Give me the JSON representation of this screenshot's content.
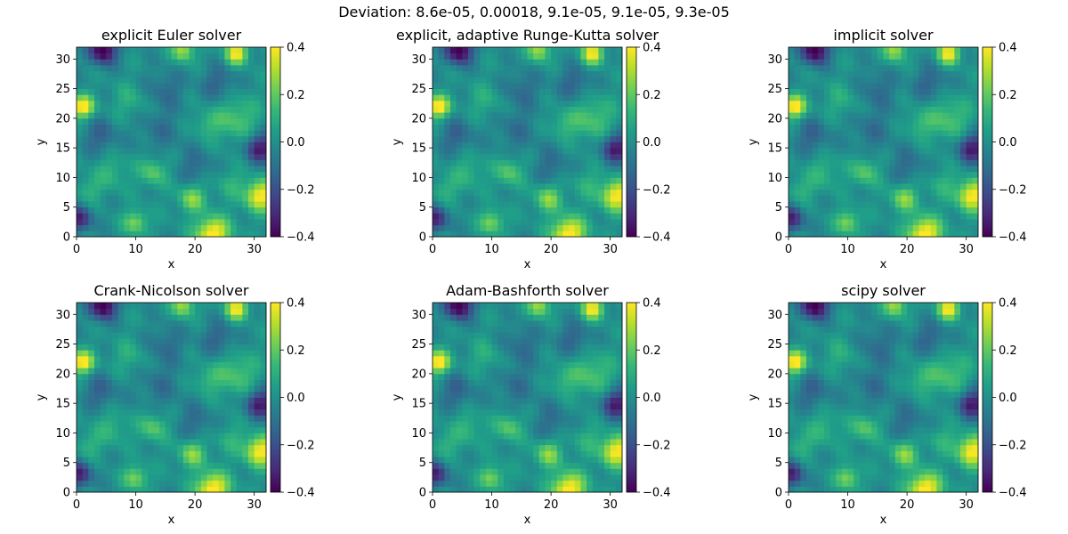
{
  "figure": {
    "suptitle": "Deviation: 8.6e-05, 0.00018, 9.1e-05, 9.1e-05, 9.3e-05"
  },
  "chart_data": [
    {
      "type": "heatmap",
      "title": "explicit Euler solver",
      "xlabel": "x",
      "ylabel": "y",
      "xlim": [
        0,
        32
      ],
      "ylim": [
        0,
        32
      ],
      "xticks": [
        0,
        10,
        20,
        30
      ],
      "yticks": [
        0,
        5,
        10,
        15,
        20,
        25,
        30
      ],
      "colormap": "viridis",
      "colorbar": {
        "range": [
          -0.4,
          0.4
        ],
        "ticks": [
          "0.4",
          "0.2",
          "0.0",
          "−0.2",
          "−0.4"
        ]
      }
    },
    {
      "type": "heatmap",
      "title": "explicit, adaptive Runge-Kutta solver",
      "xlabel": "x",
      "ylabel": "y",
      "xlim": [
        0,
        32
      ],
      "ylim": [
        0,
        32
      ],
      "xticks": [
        0,
        10,
        20,
        30
      ],
      "yticks": [
        0,
        5,
        10,
        15,
        20,
        25,
        30
      ],
      "colormap": "viridis",
      "colorbar": {
        "range": [
          -0.4,
          0.4
        ],
        "ticks": [
          "0.4",
          "0.2",
          "0.0",
          "−0.2",
          "−0.4"
        ]
      }
    },
    {
      "type": "heatmap",
      "title": "implicit solver",
      "xlabel": "x",
      "ylabel": "y",
      "xlim": [
        0,
        32
      ],
      "ylim": [
        0,
        32
      ],
      "xticks": [
        0,
        10,
        20,
        30
      ],
      "yticks": [
        0,
        5,
        10,
        15,
        20,
        25,
        30
      ],
      "colormap": "viridis",
      "colorbar": {
        "range": [
          -0.4,
          0.4
        ],
        "ticks": [
          "0.4",
          "0.2",
          "0.0",
          "−0.2",
          "−0.4"
        ]
      }
    },
    {
      "type": "heatmap",
      "title": "Crank-Nicolson solver",
      "xlabel": "x",
      "ylabel": "y",
      "xlim": [
        0,
        32
      ],
      "ylim": [
        0,
        32
      ],
      "xticks": [
        0,
        10,
        20,
        30
      ],
      "yticks": [
        0,
        5,
        10,
        15,
        20,
        25,
        30
      ],
      "colormap": "viridis",
      "colorbar": {
        "range": [
          -0.4,
          0.4
        ],
        "ticks": [
          "0.4",
          "0.2",
          "0.0",
          "−0.2",
          "−0.4"
        ]
      }
    },
    {
      "type": "heatmap",
      "title": "Adam-Bashforth solver",
      "xlabel": "x",
      "ylabel": "y",
      "xlim": [
        0,
        32
      ],
      "ylim": [
        0,
        32
      ],
      "xticks": [
        0,
        10,
        20,
        30
      ],
      "yticks": [
        0,
        5,
        10,
        15,
        20,
        25,
        30
      ],
      "colormap": "viridis",
      "colorbar": {
        "range": [
          -0.4,
          0.4
        ],
        "ticks": [
          "0.4",
          "0.2",
          "0.0",
          "−0.2",
          "−0.4"
        ]
      }
    },
    {
      "type": "heatmap",
      "title": "scipy solver",
      "xlabel": "x",
      "ylabel": "y",
      "xlim": [
        0,
        32
      ],
      "ylim": [
        0,
        32
      ],
      "xticks": [
        0,
        10,
        20,
        30
      ],
      "yticks": [
        0,
        5,
        10,
        15,
        20,
        25,
        30
      ],
      "colormap": "viridis",
      "colorbar": {
        "range": [
          -0.4,
          0.4
        ],
        "ticks": [
          "0.4",
          "0.2",
          "0.0",
          "−0.2",
          "−0.4"
        ]
      }
    }
  ],
  "field": {
    "grid_size": 32,
    "colormap_stops": [
      "#440154",
      "#482878",
      "#3e4989",
      "#31688e",
      "#26828e",
      "#1f9e89",
      "#35b779",
      "#6ece58",
      "#b5de2b",
      "#fde725"
    ],
    "features": [
      {
        "x": 4.5,
        "y": 31.5,
        "amp": -0.45,
        "s": 1.6
      },
      {
        "x": 1,
        "y": 22,
        "amp": 0.45,
        "s": 1.3
      },
      {
        "x": 27,
        "y": 31,
        "amp": 0.4,
        "s": 1.3
      },
      {
        "x": 18,
        "y": 31.5,
        "amp": 0.3,
        "s": 1.3
      },
      {
        "x": 31,
        "y": 7,
        "amp": 0.42,
        "s": 1.8
      },
      {
        "x": 23,
        "y": 0.5,
        "amp": 0.45,
        "s": 2.0
      },
      {
        "x": 19.5,
        "y": 6.5,
        "amp": 0.25,
        "s": 1.6
      },
      {
        "x": 10,
        "y": 2.5,
        "amp": 0.25,
        "s": 1.4
      },
      {
        "x": 31,
        "y": 15,
        "amp": -0.35,
        "s": 1.7
      },
      {
        "x": 0.5,
        "y": 3,
        "amp": -0.32,
        "s": 1.5
      },
      {
        "x": 27,
        "y": 20,
        "amp": 0.18,
        "s": 2.5
      },
      {
        "x": 14,
        "y": 18,
        "amp": -0.1,
        "s": 2.5
      },
      {
        "x": 6,
        "y": 11,
        "amp": 0.12,
        "s": 2.0
      },
      {
        "x": 24,
        "y": 26,
        "amp": -0.15,
        "s": 2.0
      },
      {
        "x": 15,
        "y": 25,
        "amp": -0.12,
        "s": 2.2
      },
      {
        "x": 9,
        "y": 23,
        "amp": 0.1,
        "s": 2.0
      },
      {
        "x": 20,
        "y": 12,
        "amp": -0.12,
        "s": 2.0
      },
      {
        "x": 13,
        "y": 11,
        "amp": 0.2,
        "s": 1.6
      },
      {
        "x": 4,
        "y": 17,
        "amp": -0.15,
        "s": 2.0
      },
      {
        "x": 26,
        "y": 9,
        "amp": 0.1,
        "s": 1.8
      },
      {
        "x": 2,
        "y": 8,
        "amp": 0.12,
        "s": 1.5
      },
      {
        "x": 22,
        "y": 19,
        "amp": 0.12,
        "s": 1.6
      }
    ]
  }
}
